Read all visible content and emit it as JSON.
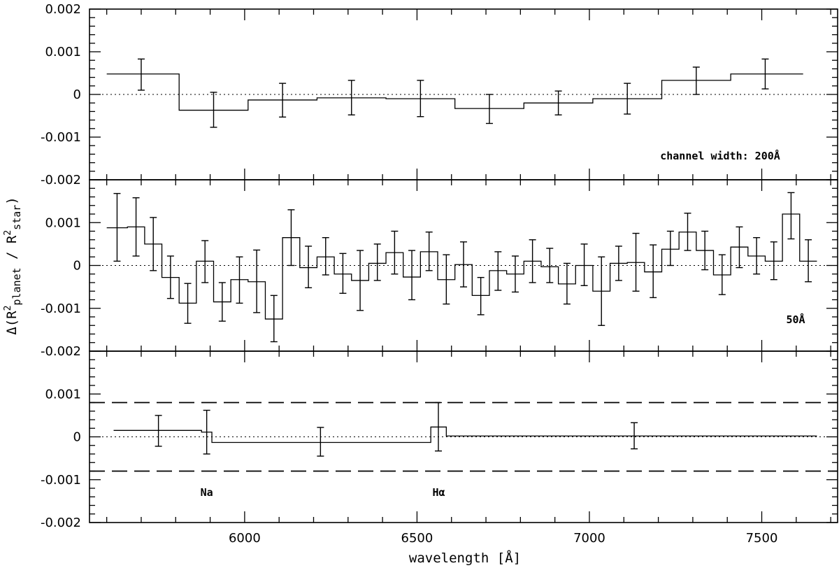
{
  "chart_data": [
    {
      "type": "step",
      "panel": "top",
      "annotation": "channel width:  200Å",
      "ylim": [
        -0.002,
        0.002
      ],
      "yticks": [
        0.002,
        0.001,
        0,
        -0.001,
        -0.002
      ],
      "ytick_labels": [
        "0.002",
        "0.001",
        "0",
        "-0.001",
        "-0.002"
      ],
      "bins": [
        {
          "x0": 5600,
          "x1": 5810,
          "y": 0.00048,
          "cx": 5700,
          "ylo": 0.0001,
          "yhi": 0.00083
        },
        {
          "x0": 5810,
          "x1": 6010,
          "y": -0.00037,
          "cx": 5910,
          "ylo": -0.00077,
          "yhi": 5e-05
        },
        {
          "x0": 6010,
          "x1": 6210,
          "y": -0.00013,
          "cx": 6110,
          "ylo": -0.00053,
          "yhi": 0.00026
        },
        {
          "x0": 6210,
          "x1": 6410,
          "y": -8e-05,
          "cx": 6310,
          "ylo": -0.00048,
          "yhi": 0.00033
        },
        {
          "x0": 6410,
          "x1": 6610,
          "y": -0.0001,
          "cx": 6510,
          "ylo": -0.00052,
          "yhi": 0.00033
        },
        {
          "x0": 6610,
          "x1": 6810,
          "y": -0.00033,
          "cx": 6710,
          "ylo": -0.00068,
          "yhi": 0.0
        },
        {
          "x0": 6810,
          "x1": 7010,
          "y": -0.0002,
          "cx": 6910,
          "ylo": -0.00048,
          "yhi": 8e-05
        },
        {
          "x0": 7010,
          "x1": 7210,
          "y": -0.0001,
          "cx": 7110,
          "ylo": -0.00046,
          "yhi": 0.00026
        },
        {
          "x0": 7210,
          "x1": 7410,
          "y": 0.00033,
          "cx": 7310,
          "ylo": 0.0,
          "yhi": 0.00064
        },
        {
          "x0": 7410,
          "x1": 7620,
          "y": 0.00048,
          "cx": 7510,
          "ylo": 0.00013,
          "yhi": 0.00083
        }
      ]
    },
    {
      "type": "step",
      "panel": "middle",
      "annotation": "50Å",
      "ylim": [
        -0.002,
        0.002
      ],
      "yticks": [
        0.001,
        0,
        -0.001,
        -0.002
      ],
      "ytick_labels": [
        "0.001",
        "0",
        "-0.001",
        "-0.002"
      ],
      "bins": [
        {
          "x0": 5600,
          "x1": 5660,
          "y": 0.00088,
          "cx": 5630,
          "ylo": 0.0001,
          "yhi": 0.00168
        },
        {
          "x0": 5660,
          "x1": 5710,
          "y": 0.0009,
          "cx": 5685,
          "ylo": 0.00022,
          "yhi": 0.00158
        },
        {
          "x0": 5710,
          "x1": 5760,
          "y": 0.0005,
          "cx": 5735,
          "ylo": -0.00012,
          "yhi": 0.00112
        },
        {
          "x0": 5760,
          "x1": 5810,
          "y": -0.00028,
          "cx": 5785,
          "ylo": -0.00077,
          "yhi": 0.00022
        },
        {
          "x0": 5810,
          "x1": 5860,
          "y": -0.00088,
          "cx": 5835,
          "ylo": -0.00135,
          "yhi": -0.00042
        },
        {
          "x0": 5860,
          "x1": 5910,
          "y": 0.0001,
          "cx": 5885,
          "ylo": -0.0004,
          "yhi": 0.00058
        },
        {
          "x0": 5910,
          "x1": 5960,
          "y": -0.00085,
          "cx": 5935,
          "ylo": -0.0013,
          "yhi": -0.0004
        },
        {
          "x0": 5960,
          "x1": 6010,
          "y": -0.00033,
          "cx": 5985,
          "ylo": -0.00088,
          "yhi": 0.0002
        },
        {
          "x0": 6010,
          "x1": 6060,
          "y": -0.00038,
          "cx": 6035,
          "ylo": -0.0011,
          "yhi": 0.00036
        },
        {
          "x0": 6060,
          "x1": 6110,
          "y": -0.00125,
          "cx": 6085,
          "ylo": -0.00178,
          "yhi": -0.0007
        },
        {
          "x0": 6110,
          "x1": 6160,
          "y": 0.00065,
          "cx": 6135,
          "ylo": 0.0,
          "yhi": 0.0013
        },
        {
          "x0": 6160,
          "x1": 6210,
          "y": -5e-05,
          "cx": 6185,
          "ylo": -0.00052,
          "yhi": 0.00045
        },
        {
          "x0": 6210,
          "x1": 6260,
          "y": 0.0002,
          "cx": 6235,
          "ylo": -0.00022,
          "yhi": 0.00065
        },
        {
          "x0": 6260,
          "x1": 6310,
          "y": -0.0002,
          "cx": 6285,
          "ylo": -0.00065,
          "yhi": 0.00028
        },
        {
          "x0": 6310,
          "x1": 6360,
          "y": -0.00035,
          "cx": 6335,
          "ylo": -0.00105,
          "yhi": 0.00035
        },
        {
          "x0": 6360,
          "x1": 6410,
          "y": 5e-05,
          "cx": 6385,
          "ylo": -0.00035,
          "yhi": 0.0005
        },
        {
          "x0": 6410,
          "x1": 6460,
          "y": 0.0003,
          "cx": 6435,
          "ylo": -0.0002,
          "yhi": 0.0008
        },
        {
          "x0": 6460,
          "x1": 6510,
          "y": -0.00027,
          "cx": 6485,
          "ylo": -0.0008,
          "yhi": 0.00035
        },
        {
          "x0": 6510,
          "x1": 6560,
          "y": 0.00032,
          "cx": 6535,
          "ylo": -0.00012,
          "yhi": 0.00078
        },
        {
          "x0": 6560,
          "x1": 6610,
          "y": -0.00033,
          "cx": 6585,
          "ylo": -0.0009,
          "yhi": 0.00025
        },
        {
          "x0": 6610,
          "x1": 6660,
          "y": 2e-05,
          "cx": 6635,
          "ylo": -0.0005,
          "yhi": 0.00055
        },
        {
          "x0": 6660,
          "x1": 6710,
          "y": -0.0007,
          "cx": 6685,
          "ylo": -0.00115,
          "yhi": -0.00028
        },
        {
          "x0": 6710,
          "x1": 6760,
          "y": -0.00012,
          "cx": 6735,
          "ylo": -0.00058,
          "yhi": 0.00032
        },
        {
          "x0": 6760,
          "x1": 6810,
          "y": -0.0002,
          "cx": 6785,
          "ylo": -0.00062,
          "yhi": 0.00022
        },
        {
          "x0": 6810,
          "x1": 6860,
          "y": 0.0001,
          "cx": 6835,
          "ylo": -0.0004,
          "yhi": 0.0006
        },
        {
          "x0": 6860,
          "x1": 6910,
          "y": -3e-05,
          "cx": 6885,
          "ylo": -0.0004,
          "yhi": 0.0004
        },
        {
          "x0": 6910,
          "x1": 6960,
          "y": -0.00043,
          "cx": 6935,
          "ylo": -0.0009,
          "yhi": 5e-05
        },
        {
          "x0": 6960,
          "x1": 7010,
          "y": 0.0,
          "cx": 6985,
          "ylo": -0.00047,
          "yhi": 0.0005
        },
        {
          "x0": 7010,
          "x1": 7060,
          "y": -0.0006,
          "cx": 7035,
          "ylo": -0.0014,
          "yhi": 0.0002
        },
        {
          "x0": 7060,
          "x1": 7110,
          "y": 5e-05,
          "cx": 7085,
          "ylo": -0.00035,
          "yhi": 0.00045
        },
        {
          "x0": 7110,
          "x1": 7160,
          "y": 7e-05,
          "cx": 7135,
          "ylo": -0.0006,
          "yhi": 0.00075
        },
        {
          "x0": 7160,
          "x1": 7210,
          "y": -0.00015,
          "cx": 7185,
          "ylo": -0.00075,
          "yhi": 0.00048
        },
        {
          "x0": 7210,
          "x1": 7260,
          "y": 0.00038,
          "cx": 7235,
          "ylo": 0.0,
          "yhi": 0.0008
        },
        {
          "x0": 7260,
          "x1": 7310,
          "y": 0.00078,
          "cx": 7285,
          "ylo": 0.00035,
          "yhi": 0.00122
        },
        {
          "x0": 7310,
          "x1": 7360,
          "y": 0.00035,
          "cx": 7335,
          "ylo": -0.0001,
          "yhi": 0.0008
        },
        {
          "x0": 7360,
          "x1": 7410,
          "y": -0.00022,
          "cx": 7385,
          "ylo": -0.00068,
          "yhi": 0.00025
        },
        {
          "x0": 7410,
          "x1": 7460,
          "y": 0.00043,
          "cx": 7435,
          "ylo": -5e-05,
          "yhi": 0.0009
        },
        {
          "x0": 7460,
          "x1": 7510,
          "y": 0.00022,
          "cx": 7485,
          "ylo": -0.0002,
          "yhi": 0.00065
        },
        {
          "x0": 7510,
          "x1": 7560,
          "y": 0.0001,
          "cx": 7535,
          "ylo": -0.00033,
          "yhi": 0.00055
        },
        {
          "x0": 7560,
          "x1": 7610,
          "y": 0.0012,
          "cx": 7585,
          "ylo": 0.00062,
          "yhi": 0.0017
        },
        {
          "x0": 7610,
          "x1": 7660,
          "y": 0.0001,
          "cx": 7635,
          "ylo": -0.00038,
          "yhi": 0.0006
        }
      ]
    },
    {
      "type": "step",
      "panel": "bottom",
      "ylim": [
        -0.002,
        0.002
      ],
      "yticks": [
        0.001,
        0,
        -0.001,
        -0.002
      ],
      "ytick_labels": [
        "0.001",
        "0",
        "-0.001",
        "-0.002"
      ],
      "dashed_levels": [
        0.0008,
        -0.0008
      ],
      "bins": [
        {
          "x0": 5620,
          "x1": 5875,
          "y": 0.00015,
          "cx": 5750,
          "ylo": -0.00022,
          "yhi": 0.0005
        },
        {
          "x0": 5875,
          "x1": 5905,
          "y": 0.00011,
          "cx": 5890,
          "ylo": -0.0004,
          "yhi": 0.00062
        },
        {
          "x0": 5905,
          "x1": 6540,
          "y": -0.00013,
          "cx": 6220,
          "ylo": -0.00045,
          "yhi": 0.00022
        },
        {
          "x0": 6540,
          "x1": 6585,
          "y": 0.00023,
          "cx": 6562,
          "ylo": -0.00033,
          "yhi": 0.0008
        },
        {
          "x0": 6585,
          "x1": 7660,
          "y": 2e-05,
          "cx": 7130,
          "ylo": -0.00028,
          "yhi": 0.00033
        }
      ],
      "annotations": [
        {
          "text": "Na",
          "x": 5890
        },
        {
          "text": "Hα",
          "x": 6563
        }
      ]
    }
  ],
  "xaxis": {
    "range": [
      5550,
      7720
    ],
    "ticks": [
      6000,
      6500,
      7000,
      7500
    ],
    "tick_labels": [
      "6000",
      "6500",
      "7000",
      "7500"
    ],
    "minor_step": 100,
    "label": "wavelength [Å]"
  },
  "yaxis": {
    "label": "Δ(R²planet / R²star)",
    "label_prefix": "Δ(R",
    "label_sup1": "2",
    "label_sub1": "planet",
    "label_mid": " / R",
    "label_sup2": "2",
    "label_sub2": "star",
    "label_suffix": ")"
  }
}
